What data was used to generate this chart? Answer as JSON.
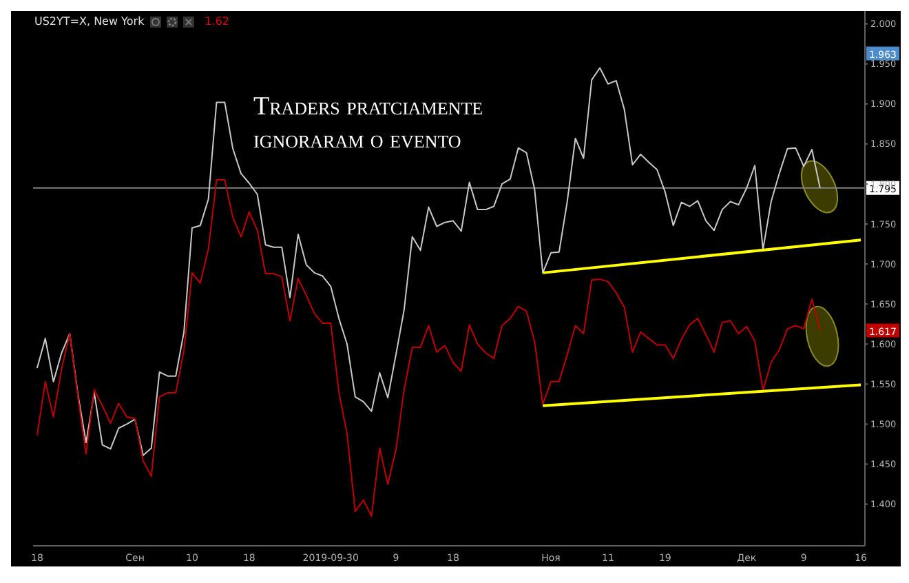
{
  "chart_data": {
    "type": "line",
    "title": "Traders pratciamente ignoraram o evento",
    "subtitle": "US2YT=X, New York",
    "annotations": [
      "1.62",
      {
        "text": "1.963",
        "y": 1.963
      },
      {
        "text": "1.617",
        "y": 1.617
      }
    ],
    "categories": [
      "18",
      null,
      null,
      null,
      null,
      null,
      null,
      null,
      null,
      null,
      null,
      null,
      "Сен",
      null,
      null,
      null,
      null,
      null,
      null,
      "10",
      null,
      null,
      null,
      null,
      null,
      null,
      "18",
      null,
      null,
      null,
      null,
      null,
      null,
      null,
      null,
      null,
      "2019-09-30",
      null,
      null,
      null,
      null,
      null,
      null,
      null,
      "9",
      null,
      null,
      null,
      null,
      null,
      null,
      "18",
      null,
      null,
      null,
      null,
      null,
      null,
      null,
      null,
      null,
      null,
      null,
      "Ноя",
      null,
      null,
      null,
      null,
      null,
      null,
      "11",
      null,
      null,
      null,
      null,
      null,
      null,
      "19",
      null,
      null,
      null,
      null,
      null,
      null,
      null,
      null,
      null,
      "Дек",
      null,
      null,
      null,
      null,
      null,
      null,
      "9",
      null,
      null,
      null,
      null,
      null,
      null,
      "16"
    ],
    "series": [
      {
        "color": "#c8c8c8",
        "values": [
          1.57,
          1.607,
          1.553,
          1.589,
          1.613,
          1.537,
          1.477,
          1.539,
          1.474,
          1.469,
          1.495,
          1.5,
          1.506,
          1.461,
          1.47,
          1.565,
          1.56,
          1.56,
          1.615,
          1.745,
          1.748,
          1.781,
          1.902,
          1.902,
          1.844,
          1.813,
          1.801,
          1.787,
          1.724,
          1.721,
          1.721,
          1.658,
          1.737,
          1.699,
          1.689,
          1.685,
          1.672,
          1.632,
          1.6,
          1.534,
          1.528,
          1.516,
          1.564,
          1.533,
          1.587,
          1.643,
          1.734,
          1.717,
          1.771,
          1.747,
          1.752,
          1.754,
          1.741,
          1.802,
          1.768,
          1.768,
          1.772,
          1.8,
          1.806,
          1.845,
          1.839,
          1.793,
          1.689,
          1.714,
          1.715,
          1.778,
          1.857,
          1.832,
          1.93,
          1.945,
          1.925,
          1.929,
          1.893,
          1.824,
          1.837,
          1.827,
          1.818,
          1.79,
          1.748,
          1.777,
          1.772,
          1.779,
          1.754,
          1.742,
          1.768,
          1.778,
          1.774,
          1.795,
          1.823,
          1.718,
          1.778,
          1.813,
          1.844,
          1.845,
          1.822,
          1.843,
          1.795,
          null,
          null,
          null,
          null,
          null
        ]
      },
      {
        "color": "#c00000",
        "values": [
          1.486,
          1.553,
          1.509,
          1.569,
          1.613,
          1.534,
          1.463,
          1.543,
          1.523,
          1.501,
          1.526,
          1.509,
          1.507,
          1.454,
          1.435,
          1.534,
          1.539,
          1.539,
          1.592,
          1.689,
          1.676,
          1.719,
          1.805,
          1.805,
          1.758,
          1.734,
          1.765,
          1.742,
          1.688,
          1.688,
          1.684,
          1.629,
          1.682,
          1.661,
          1.638,
          1.626,
          1.626,
          1.54,
          1.488,
          1.391,
          1.405,
          1.385,
          1.47,
          1.425,
          1.468,
          1.543,
          1.596,
          1.596,
          1.623,
          1.59,
          1.598,
          1.577,
          1.566,
          1.624,
          1.6,
          1.589,
          1.582,
          1.623,
          1.632,
          1.647,
          1.641,
          1.603,
          1.525,
          1.553,
          1.553,
          1.587,
          1.623,
          1.613,
          1.68,
          1.681,
          1.678,
          1.664,
          1.646,
          1.59,
          1.615,
          1.607,
          1.599,
          1.599,
          1.582,
          1.606,
          1.624,
          1.632,
          1.612,
          1.59,
          1.627,
          1.629,
          1.613,
          1.622,
          1.604,
          1.542,
          1.577,
          1.593,
          1.619,
          1.623,
          1.619,
          1.656,
          1.617,
          null,
          null,
          null,
          null,
          null
        ]
      },
      {
        "type": "line",
        "color": "#ffff00",
        "values": [
          null,
          null,
          null,
          null,
          null,
          null,
          null,
          null,
          null,
          null,
          null,
          null,
          null,
          null,
          null,
          null,
          null,
          null,
          null,
          null,
          null,
          null,
          null,
          null,
          null,
          null,
          null,
          null,
          null,
          null,
          null,
          null,
          null,
          null,
          null,
          null,
          null,
          null,
          null,
          null,
          null,
          null,
          null,
          null,
          null,
          null,
          null,
          null,
          null,
          null,
          null,
          null,
          null,
          null,
          null,
          null,
          null,
          null,
          null,
          null,
          null,
          null,
          1.689,
          null,
          null,
          null,
          null,
          null,
          null,
          null,
          null,
          null,
          null,
          null,
          null,
          null,
          null,
          null,
          null,
          null,
          null,
          null,
          null,
          null,
          null,
          null,
          null,
          null,
          null,
          null,
          null,
          null,
          null,
          null,
          null,
          null,
          null,
          null,
          null,
          null,
          null,
          1.73
        ]
      },
      {
        "type": "line",
        "color": "#ffff00",
        "values": [
          null,
          null,
          null,
          null,
          null,
          null,
          null,
          null,
          null,
          null,
          null,
          null,
          null,
          null,
          null,
          null,
          null,
          null,
          null,
          null,
          null,
          null,
          null,
          null,
          null,
          null,
          null,
          null,
          null,
          null,
          null,
          null,
          null,
          null,
          null,
          null,
          null,
          null,
          null,
          null,
          null,
          null,
          null,
          null,
          null,
          null,
          null,
          null,
          null,
          null,
          null,
          null,
          null,
          null,
          null,
          null,
          null,
          null,
          null,
          null,
          null,
          null,
          1.523,
          null,
          null,
          null,
          null,
          null,
          null,
          null,
          null,
          null,
          null,
          null,
          null,
          null,
          null,
          null,
          null,
          null,
          null,
          null,
          null,
          null,
          null,
          null,
          null,
          null,
          null,
          null,
          null,
          null,
          null,
          null,
          null,
          null,
          null,
          null,
          null,
          null,
          null,
          1.549
        ]
      }
    ],
    "ylim": [
      1.348,
      2.016
    ],
    "yticks": [
      {
        "value": 1.4,
        "label": "1.400"
      },
      {
        "value": 1.45,
        "label": "1.450"
      },
      {
        "value": 1.5,
        "label": "1.500"
      },
      {
        "value": 1.55,
        "label": "1.550"
      },
      {
        "value": 1.6,
        "label": "1.600"
      },
      {
        "value": 1.65,
        "label": "1.650"
      },
      {
        "value": 1.7,
        "label": "1.700"
      },
      {
        "value": 1.75,
        "label": "1.750"
      },
      {
        "value": 1.8,
        "label": "1.800"
      },
      {
        "value": 1.85,
        "label": "1.850"
      },
      {
        "value": 1.9,
        "label": "1.900"
      },
      {
        "value": 1.95,
        "label": "1.950"
      },
      {
        "value": 2.0,
        "label": "2.000"
      }
    ],
    "ref_lines": [
      {
        "axis": "y",
        "value": 1.795,
        "label": "1.795",
        "color": "#808080"
      }
    ],
    "grid": false,
    "legend": false,
    "marker": "none",
    "line_style": "solid"
  }
}
